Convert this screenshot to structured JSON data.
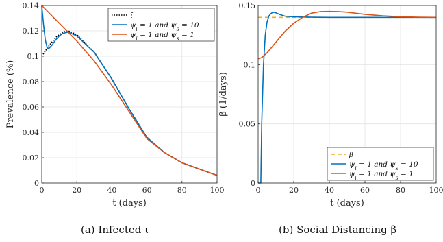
{
  "captions": [
    "(a) Infected ι",
    "(b) Social Distancing β"
  ],
  "colors": {
    "blue": "#0072BD",
    "orange": "#D95319",
    "black": "#000000",
    "gold": "#EDB120"
  },
  "chart_data": [
    {
      "type": "line",
      "xlabel": "t (days)",
      "ylabel": "Prevalence (%)",
      "xlim": [
        0,
        100
      ],
      "ylim": [
        0,
        0.14
      ],
      "xticks": [
        0,
        20,
        40,
        60,
        80,
        100
      ],
      "xtick_labels": [
        "0",
        "20",
        "40",
        "60",
        "80",
        "100"
      ],
      "yticks": [
        0,
        0.02,
        0.04,
        0.06,
        0.08,
        0.1,
        0.12,
        0.14
      ],
      "ytick_labels": [
        "0",
        "0.02",
        "0.04",
        "0.06",
        "0.08",
        "0.1",
        "0.12",
        "0.14"
      ],
      "grid": true,
      "legend_position": "top-right",
      "series": [
        {
          "name": "ῑ",
          "color": "#000000",
          "style": "dotted",
          "x": [
            0,
            4,
            8,
            12,
            15,
            20,
            30,
            40,
            50,
            60,
            70,
            80,
            90,
            100
          ],
          "y": [
            0.1,
            0.108,
            0.115,
            0.119,
            0.12,
            0.117,
            0.103,
            0.082,
            0.058,
            0.036,
            0.024,
            0.016,
            0.011,
            0.006
          ]
        },
        {
          "name": "ψ_i = 1 and ψ_s = 10",
          "color": "#0072BD",
          "style": "solid",
          "x": [
            0,
            1,
            2,
            3,
            4,
            6,
            8,
            10,
            12,
            15,
            20,
            30,
            40,
            50,
            60,
            70,
            80,
            90,
            100
          ],
          "y": [
            0.14,
            0.125,
            0.113,
            0.107,
            0.106,
            0.109,
            0.113,
            0.116,
            0.118,
            0.119,
            0.116,
            0.103,
            0.082,
            0.058,
            0.036,
            0.024,
            0.016,
            0.011,
            0.006
          ]
        },
        {
          "name": "ψ_i = 1 and ψ_s = 1",
          "color": "#D95319",
          "style": "solid",
          "x": [
            0,
            10,
            20,
            30,
            40,
            50,
            60,
            70,
            80,
            90,
            100
          ],
          "y": [
            0.14,
            0.126,
            0.112,
            0.096,
            0.077,
            0.056,
            0.035,
            0.024,
            0.016,
            0.011,
            0.006
          ]
        }
      ]
    },
    {
      "type": "line",
      "xlabel": "t (days)",
      "ylabel": "β (1/days)",
      "xlim": [
        0,
        100
      ],
      "ylim": [
        0,
        0.15
      ],
      "xticks": [
        0,
        20,
        40,
        60,
        80,
        100
      ],
      "xtick_labels": [
        "0",
        "20",
        "40",
        "60",
        "80",
        "100"
      ],
      "yticks": [
        0,
        0.05,
        0.1,
        0.15
      ],
      "ytick_labels": [
        "0",
        "0.05",
        "0.1",
        "0.15"
      ],
      "grid": true,
      "legend_position": "bottom-right",
      "series": [
        {
          "name": "β̄",
          "color": "#EDB120",
          "style": "dashed",
          "x": [
            0,
            100
          ],
          "y": [
            0.14,
            0.14
          ]
        },
        {
          "name": "ψ_i = 1 and ψ_s = 10",
          "color": "#0072BD",
          "style": "solid",
          "x": [
            0,
            1.5,
            2,
            3,
            4,
            5,
            6,
            7,
            8,
            9,
            10,
            12,
            15,
            20,
            30,
            40,
            60,
            80,
            100
          ],
          "y": [
            0,
            0,
            0.05,
            0.1,
            0.125,
            0.136,
            0.141,
            0.143,
            0.144,
            0.1442,
            0.1438,
            0.1425,
            0.141,
            0.1405,
            0.1401,
            0.14,
            0.14,
            0.14,
            0.14
          ]
        },
        {
          "name": "ψ_i = 1 and ψ_s = 1",
          "color": "#D95319",
          "style": "solid",
          "x": [
            0,
            2,
            5,
            10,
            15,
            20,
            25,
            30,
            35,
            40,
            45,
            50,
            60,
            70,
            80,
            90,
            100
          ],
          "y": [
            0.105,
            0.106,
            0.11,
            0.119,
            0.128,
            0.135,
            0.14,
            0.1435,
            0.1448,
            0.145,
            0.1448,
            0.1443,
            0.1425,
            0.1413,
            0.1405,
            0.1401,
            0.14
          ]
        }
      ]
    }
  ]
}
